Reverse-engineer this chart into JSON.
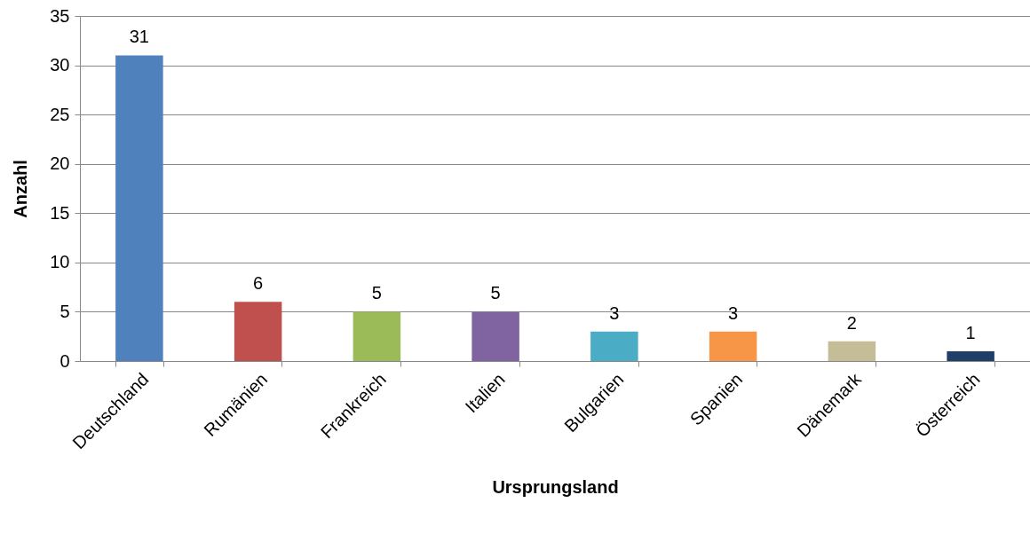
{
  "chart_data": {
    "type": "bar",
    "xlabel": "Ursprungsland",
    "ylabel": "Anzahl",
    "categories": [
      "Deutschland",
      "Rumänien",
      "Frankreich",
      "Italien",
      "Bulgarien",
      "Spanien",
      "Dänemark",
      "Österreich"
    ],
    "values": [
      31,
      6,
      5,
      5,
      3,
      3,
      2,
      1
    ],
    "colors": [
      "#4f81bd",
      "#c0504d",
      "#9bbb59",
      "#8064a2",
      "#4bacc6",
      "#f79646",
      "#c4bd97",
      "#1f3f68"
    ],
    "ylim": [
      0,
      35
    ],
    "yticks": [
      0,
      5,
      10,
      15,
      20,
      25,
      30,
      35
    ],
    "grid": "y",
    "data_labels": true
  }
}
